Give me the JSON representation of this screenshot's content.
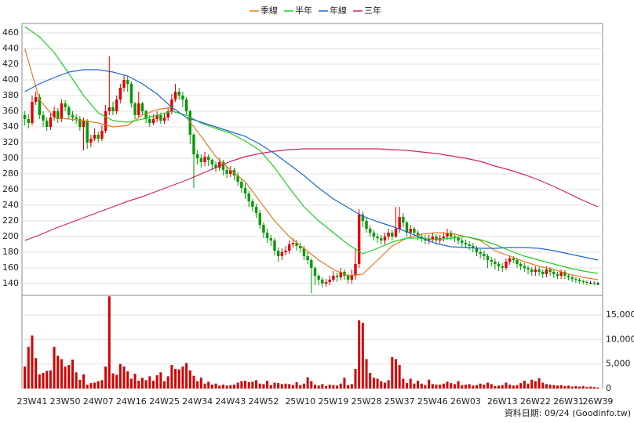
{
  "chart_data": {
    "type": "candlestick",
    "categories": [
      null,
      null,
      "23W41",
      null,
      null,
      null,
      null,
      null,
      null,
      null,
      null,
      "23W50",
      null,
      null,
      null,
      null,
      null,
      null,
      null,
      null,
      "24W07",
      null,
      null,
      null,
      null,
      null,
      null,
      null,
      null,
      "24W16",
      null,
      null,
      null,
      null,
      null,
      null,
      null,
      null,
      "24W25",
      null,
      null,
      null,
      null,
      null,
      null,
      null,
      null,
      "24W34",
      null,
      null,
      null,
      null,
      null,
      null,
      null,
      null,
      "24W43",
      null,
      null,
      null,
      null,
      null,
      null,
      null,
      null,
      "24W52",
      null,
      null,
      null,
      null,
      null,
      null,
      null,
      null,
      null,
      "25W10",
      null,
      null,
      null,
      null,
      null,
      null,
      null,
      null,
      "25W19",
      null,
      null,
      null,
      null,
      null,
      null,
      null,
      null,
      "25W28",
      null,
      null,
      null,
      null,
      null,
      null,
      null,
      null,
      "25W37",
      null,
      null,
      null,
      null,
      null,
      null,
      null,
      null,
      "25W46",
      null,
      null,
      null,
      null,
      null,
      null,
      null,
      null,
      "26W03",
      null,
      null,
      null,
      null,
      null,
      null,
      null,
      null,
      null,
      "26W13",
      null,
      null,
      null,
      null,
      null,
      null,
      null,
      null,
      "26W22",
      null,
      null,
      null,
      null,
      null,
      null,
      null,
      null,
      "26W31",
      null,
      null,
      null,
      null,
      null,
      null,
      null,
      "26W39"
    ],
    "open": [
      355,
      350,
      345,
      372,
      378,
      355,
      348,
      340,
      352,
      360,
      350,
      370,
      365,
      355,
      352,
      350,
      340,
      348,
      320,
      325,
      330,
      325,
      335,
      360,
      365,
      360,
      375,
      390,
      400,
      395,
      370,
      355,
      370,
      360,
      350,
      345,
      350,
      355,
      348,
      352,
      360,
      375,
      385,
      380,
      375,
      360,
      330,
      305,
      300,
      295,
      302,
      298,
      292,
      288,
      295,
      285,
      280,
      285,
      278,
      270,
      262,
      255,
      245,
      238,
      230,
      215,
      205,
      198,
      195,
      182,
      175,
      180,
      182,
      190,
      192,
      188,
      185,
      175,
      170,
      160,
      150,
      145,
      140,
      142,
      145,
      150,
      148,
      155,
      150,
      145,
      150,
      165,
      228,
      220,
      210,
      205,
      200,
      198,
      195,
      200,
      205,
      200,
      210,
      225,
      218,
      205,
      210,
      205,
      200,
      198,
      195,
      197,
      200,
      195,
      198,
      200,
      205,
      200,
      198,
      195,
      192,
      190,
      188,
      185,
      180,
      178,
      175,
      170,
      168,
      165,
      162,
      160,
      168,
      172,
      170,
      165,
      162,
      160,
      158,
      155,
      158,
      155,
      152,
      158,
      155,
      152,
      150,
      155,
      150,
      148,
      146,
      145,
      143,
      142,
      141,
      141,
      140
    ],
    "high": [
      360,
      356,
      380,
      385,
      382,
      360,
      352,
      358,
      366,
      364,
      375,
      374,
      368,
      360,
      356,
      354,
      352,
      350,
      330,
      338,
      334,
      342,
      368,
      430,
      372,
      380,
      395,
      407,
      405,
      398,
      372,
      385,
      372,
      362,
      355,
      356,
      360,
      358,
      358,
      365,
      382,
      395,
      390,
      385,
      378,
      362,
      332,
      310,
      305,
      308,
      305,
      300,
      296,
      300,
      298,
      290,
      290,
      288,
      282,
      274,
      268,
      258,
      248,
      242,
      234,
      218,
      210,
      202,
      198,
      186,
      185,
      188,
      195,
      198,
      196,
      192,
      188,
      180,
      172,
      162,
      152,
      148,
      146,
      150,
      156,
      154,
      160,
      158,
      152,
      158,
      185,
      235,
      232,
      224,
      214,
      208,
      204,
      202,
      205,
      210,
      208,
      238,
      238,
      230,
      220,
      215,
      212,
      208,
      204,
      202,
      202,
      205,
      203,
      202,
      206,
      210,
      208,
      204,
      201,
      198,
      196,
      194,
      192,
      188,
      184,
      182,
      178,
      174,
      172,
      168,
      166,
      172,
      176,
      175,
      173,
      168,
      166,
      163,
      161,
      162,
      161,
      158,
      162,
      161,
      158,
      155,
      158,
      157,
      153,
      150,
      148,
      147,
      145,
      144,
      143,
      143,
      142
    ],
    "low": [
      342,
      338,
      342,
      368,
      350,
      340,
      335,
      336,
      348,
      345,
      346,
      360,
      350,
      347,
      344,
      335,
      310,
      312,
      314,
      322,
      320,
      322,
      332,
      355,
      355,
      356,
      370,
      385,
      385,
      365,
      350,
      352,
      355,
      345,
      340,
      342,
      346,
      344,
      344,
      348,
      356,
      372,
      375,
      365,
      355,
      318,
      262,
      292,
      288,
      290,
      290,
      285,
      282,
      284,
      278,
      275,
      276,
      272,
      265,
      256,
      248,
      238,
      232,
      224,
      210,
      198,
      192,
      188,
      176,
      168,
      170,
      176,
      178,
      186,
      182,
      180,
      170,
      165,
      128,
      138,
      138,
      135,
      136,
      138,
      142,
      142,
      144,
      145,
      140,
      140,
      145,
      160,
      212,
      205,
      200,
      195,
      192,
      190,
      190,
      196,
      195,
      198,
      205,
      212,
      200,
      200,
      200,
      195,
      193,
      190,
      190,
      193,
      190,
      191,
      194,
      196,
      195,
      193,
      190,
      187,
      185,
      183,
      180,
      175,
      172,
      170,
      160,
      162,
      158,
      156,
      155,
      157,
      164,
      166,
      160,
      157,
      155,
      152,
      150,
      150,
      150,
      147,
      148,
      150,
      147,
      146,
      146,
      146,
      144,
      142,
      141,
      140,
      139,
      138,
      139,
      138,
      138
    ],
    "close": [
      350,
      345,
      372,
      378,
      355,
      348,
      340,
      352,
      360,
      350,
      370,
      365,
      355,
      352,
      350,
      340,
      348,
      320,
      325,
      330,
      325,
      335,
      360,
      365,
      360,
      375,
      390,
      400,
      395,
      370,
      355,
      370,
      360,
      350,
      345,
      350,
      355,
      348,
      352,
      360,
      375,
      385,
      380,
      375,
      360,
      330,
      305,
      300,
      295,
      302,
      298,
      292,
      288,
      295,
      285,
      280,
      285,
      278,
      270,
      262,
      255,
      245,
      238,
      230,
      215,
      205,
      198,
      195,
      182,
      175,
      180,
      182,
      190,
      192,
      188,
      185,
      175,
      170,
      160,
      150,
      145,
      140,
      142,
      145,
      150,
      148,
      155,
      150,
      145,
      150,
      165,
      228,
      220,
      210,
      205,
      200,
      198,
      195,
      200,
      205,
      200,
      210,
      225,
      218,
      205,
      210,
      205,
      200,
      198,
      195,
      197,
      200,
      195,
      198,
      200,
      205,
      200,
      198,
      195,
      192,
      190,
      188,
      185,
      180,
      178,
      175,
      170,
      168,
      165,
      162,
      160,
      168,
      172,
      170,
      165,
      162,
      160,
      158,
      155,
      158,
      155,
      152,
      158,
      155,
      152,
      150,
      155,
      150,
      148,
      146,
      145,
      143,
      142,
      141,
      141,
      140,
      140
    ],
    "up_color": "#e00000",
    "down_color": "#009a00",
    "flat_color": "#000000",
    "series": [
      {
        "name": "季線",
        "color": "#e07b20",
        "x": [
          0,
          4,
          8,
          12,
          16,
          20,
          24,
          28,
          32,
          36,
          40,
          44,
          48,
          52,
          56,
          60,
          64,
          68,
          72,
          76,
          80,
          84,
          88,
          92,
          96,
          100,
          104,
          108,
          112,
          116,
          120,
          124,
          128,
          132,
          136,
          140,
          144,
          148,
          152,
          156
        ],
        "values": [
          440,
          375,
          352,
          350,
          348,
          345,
          340,
          342,
          355,
          362,
          365,
          352,
          328,
          302,
          285,
          270,
          245,
          220,
          200,
          185,
          170,
          158,
          150,
          152,
          170,
          188,
          198,
          203,
          205,
          204,
          200,
          195,
          182,
          175,
          168,
          162,
          158,
          152,
          148,
          145
        ]
      },
      {
        "name": "半年",
        "color": "#22cc22",
        "x": [
          0,
          4,
          8,
          12,
          16,
          20,
          24,
          28,
          32,
          36,
          40,
          44,
          48,
          52,
          56,
          60,
          64,
          68,
          72,
          76,
          80,
          84,
          88,
          92,
          96,
          100,
          104,
          108,
          112,
          116,
          120,
          124,
          128,
          132,
          136,
          140,
          144,
          148,
          152,
          156
        ],
        "values": [
          468,
          455,
          435,
          408,
          380,
          358,
          348,
          346,
          350,
          355,
          360,
          355,
          345,
          338,
          332,
          322,
          310,
          288,
          262,
          238,
          220,
          205,
          190,
          178,
          185,
          193,
          198,
          198,
          196,
          198,
          200,
          196,
          190,
          182,
          175,
          170,
          165,
          160,
          156,
          153
        ]
      },
      {
        "name": "年線",
        "color": "#2266cc",
        "x": [
          0,
          4,
          8,
          12,
          16,
          20,
          24,
          28,
          32,
          36,
          40,
          44,
          48,
          52,
          56,
          60,
          64,
          68,
          72,
          76,
          80,
          84,
          88,
          92,
          96,
          100,
          104,
          108,
          112,
          116,
          120,
          124,
          128,
          132,
          136,
          140,
          144,
          148,
          152,
          156
        ],
        "values": [
          385,
          395,
          403,
          410,
          413,
          413,
          410,
          405,
          395,
          382,
          365,
          352,
          346,
          340,
          334,
          328,
          318,
          306,
          292,
          278,
          262,
          248,
          237,
          226,
          219,
          213,
          206,
          198,
          191,
          187,
          186,
          185,
          185,
          186,
          186,
          185,
          182,
          178,
          174,
          170
        ]
      },
      {
        "name": "三年",
        "color": "#d0206a",
        "x": [
          0,
          4,
          8,
          12,
          16,
          20,
          24,
          28,
          32,
          36,
          40,
          44,
          48,
          52,
          56,
          60,
          64,
          68,
          72,
          76,
          80,
          84,
          88,
          92,
          96,
          100,
          104,
          108,
          112,
          116,
          120,
          124,
          128,
          132,
          136,
          140,
          144,
          148,
          152,
          156
        ],
        "values": [
          195,
          202,
          210,
          217,
          224,
          231,
          238,
          245,
          251,
          258,
          265,
          272,
          280,
          288,
          296,
          302,
          306,
          309,
          311,
          312,
          312,
          312,
          312,
          312,
          312,
          311,
          310,
          308,
          306,
          303,
          300,
          296,
          290,
          285,
          279,
          272,
          264,
          255,
          246,
          238
        ]
      }
    ],
    "legend_position": "top",
    "ylim": [
      125,
      472
    ],
    "yticks": [
      140,
      160,
      180,
      200,
      220,
      240,
      260,
      280,
      300,
      320,
      340,
      360,
      380,
      400,
      420,
      440,
      460
    ],
    "grid": true,
    "volume": {
      "color": "#d40000",
      "values": [
        4500,
        8500,
        10800,
        6200,
        2900,
        3200,
        3600,
        3700,
        8500,
        6700,
        6000,
        4500,
        4800,
        5900,
        3300,
        1800,
        2900,
        800,
        1100,
        1200,
        1500,
        1700,
        4500,
        18800,
        3100,
        2800,
        5000,
        4500,
        3500,
        2000,
        3000,
        1600,
        2200,
        1700,
        2500,
        1600,
        2700,
        3300,
        1500,
        2500,
        4800,
        4000,
        3900,
        4500,
        5200,
        3700,
        2600,
        1500,
        2200,
        1000,
        1400,
        800,
        1000,
        600,
        800,
        600,
        700,
        800,
        1200,
        1500,
        1600,
        1300,
        1400,
        1700,
        1000,
        900,
        1600,
        700,
        1200,
        1100,
        900,
        1000,
        900,
        700,
        1300,
        700,
        1000,
        2300,
        1500,
        800,
        600,
        900,
        500,
        800,
        700,
        600,
        1000,
        2200,
        700,
        900,
        4000,
        13900,
        13400,
        6000,
        3200,
        2200,
        2000,
        1500,
        1200,
        1700,
        6400,
        6000,
        4800,
        2000,
        1100,
        2000,
        1000,
        1600,
        1000,
        700,
        1800,
        900,
        800,
        800,
        1000,
        1400,
        1100,
        900,
        1500,
        700,
        800,
        900,
        600,
        700,
        1000,
        800,
        1200,
        900,
        500,
        600,
        700,
        1200,
        800,
        600,
        700,
        1100,
        1600,
        1000,
        1800,
        1500,
        2100,
        1200,
        900,
        800,
        700,
        600,
        700,
        500,
        600,
        400,
        500,
        400,
        500,
        300,
        400,
        300,
        200
      ],
      "ylim": [
        0,
        19000
      ],
      "yticks": [
        0,
        {
          "value": 5000,
          "label": "5,000"
        },
        {
          "value": 10000,
          "label": "10,000"
        },
        {
          "value": 15000,
          "label": "15,000"
        }
      ]
    },
    "note": "資料日期: 09/24  (Goodinfo.tw)"
  }
}
